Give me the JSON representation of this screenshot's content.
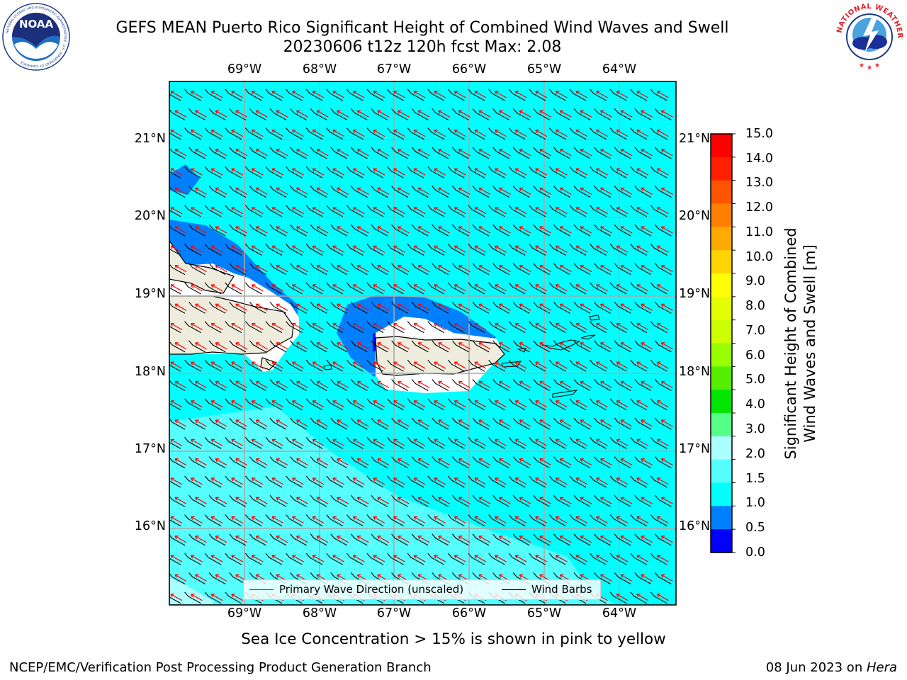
{
  "header": {
    "title_line1": "GEFS MEAN Puerto Rico Significant Height of Combined Wind Waves and Swell",
    "title_line2": "20230606 t12z 120h fcst   Max: 2.08"
  },
  "logos": {
    "noaa_text": "NOAA",
    "noaa_ring_text": "NATIONAL OCEANIC AND ATMOSPHERIC ADMINISTRATION · U.S. DEPARTMENT OF COMMERCE",
    "nws_ring_text": "NATIONAL WEATHER SERVICE"
  },
  "map": {
    "lon_labels": [
      "69°W",
      "68°W",
      "67°W",
      "66°W",
      "65°W",
      "64°W"
    ],
    "lat_labels": [
      "21°N",
      "20°N",
      "19°N",
      "18°N",
      "17°N",
      "16°N"
    ],
    "legend": {
      "wave_label": "Primary Wave Direction (unscaled)",
      "barb_label": "Wind Barbs",
      "wave_color": "#ff0000",
      "barb_color": "#000000"
    },
    "colors": {
      "ocean_base": "#00ffff",
      "land": "#eeecdc"
    }
  },
  "colorbar": {
    "label_line1": "Significant Height of Combined",
    "label_line2": "Wind Waves and Swell [m]",
    "ticks": [
      "15.0",
      "14.0",
      "13.0",
      "12.0",
      "11.0",
      "10.0",
      "9.0",
      "8.0",
      "7.0",
      "6.0",
      "5.0",
      "4.0",
      "3.0",
      "2.0",
      "1.5",
      "1.0",
      "0.5",
      "0.0"
    ],
    "colors_top_to_bottom": [
      "#ff0000",
      "#ff2000",
      "#ff5500",
      "#ff8000",
      "#ffaa00",
      "#ffd400",
      "#ffff00",
      "#e5ff00",
      "#ccff00",
      "#99ff00",
      "#55ee00",
      "#00e600",
      "#55ff88",
      "#aaffff",
      "#55ffff",
      "#00ffff",
      "#0080ff",
      "#0000ff"
    ]
  },
  "subtitle": "Sea Ice Concentration > 15% is shown in pink to yellow",
  "footer": {
    "left": "NCEP/EMC/Verification Post Processing Product Generation Branch",
    "right_prefix": "08 Jun 2023 on ",
    "right_host": "Hera"
  }
}
